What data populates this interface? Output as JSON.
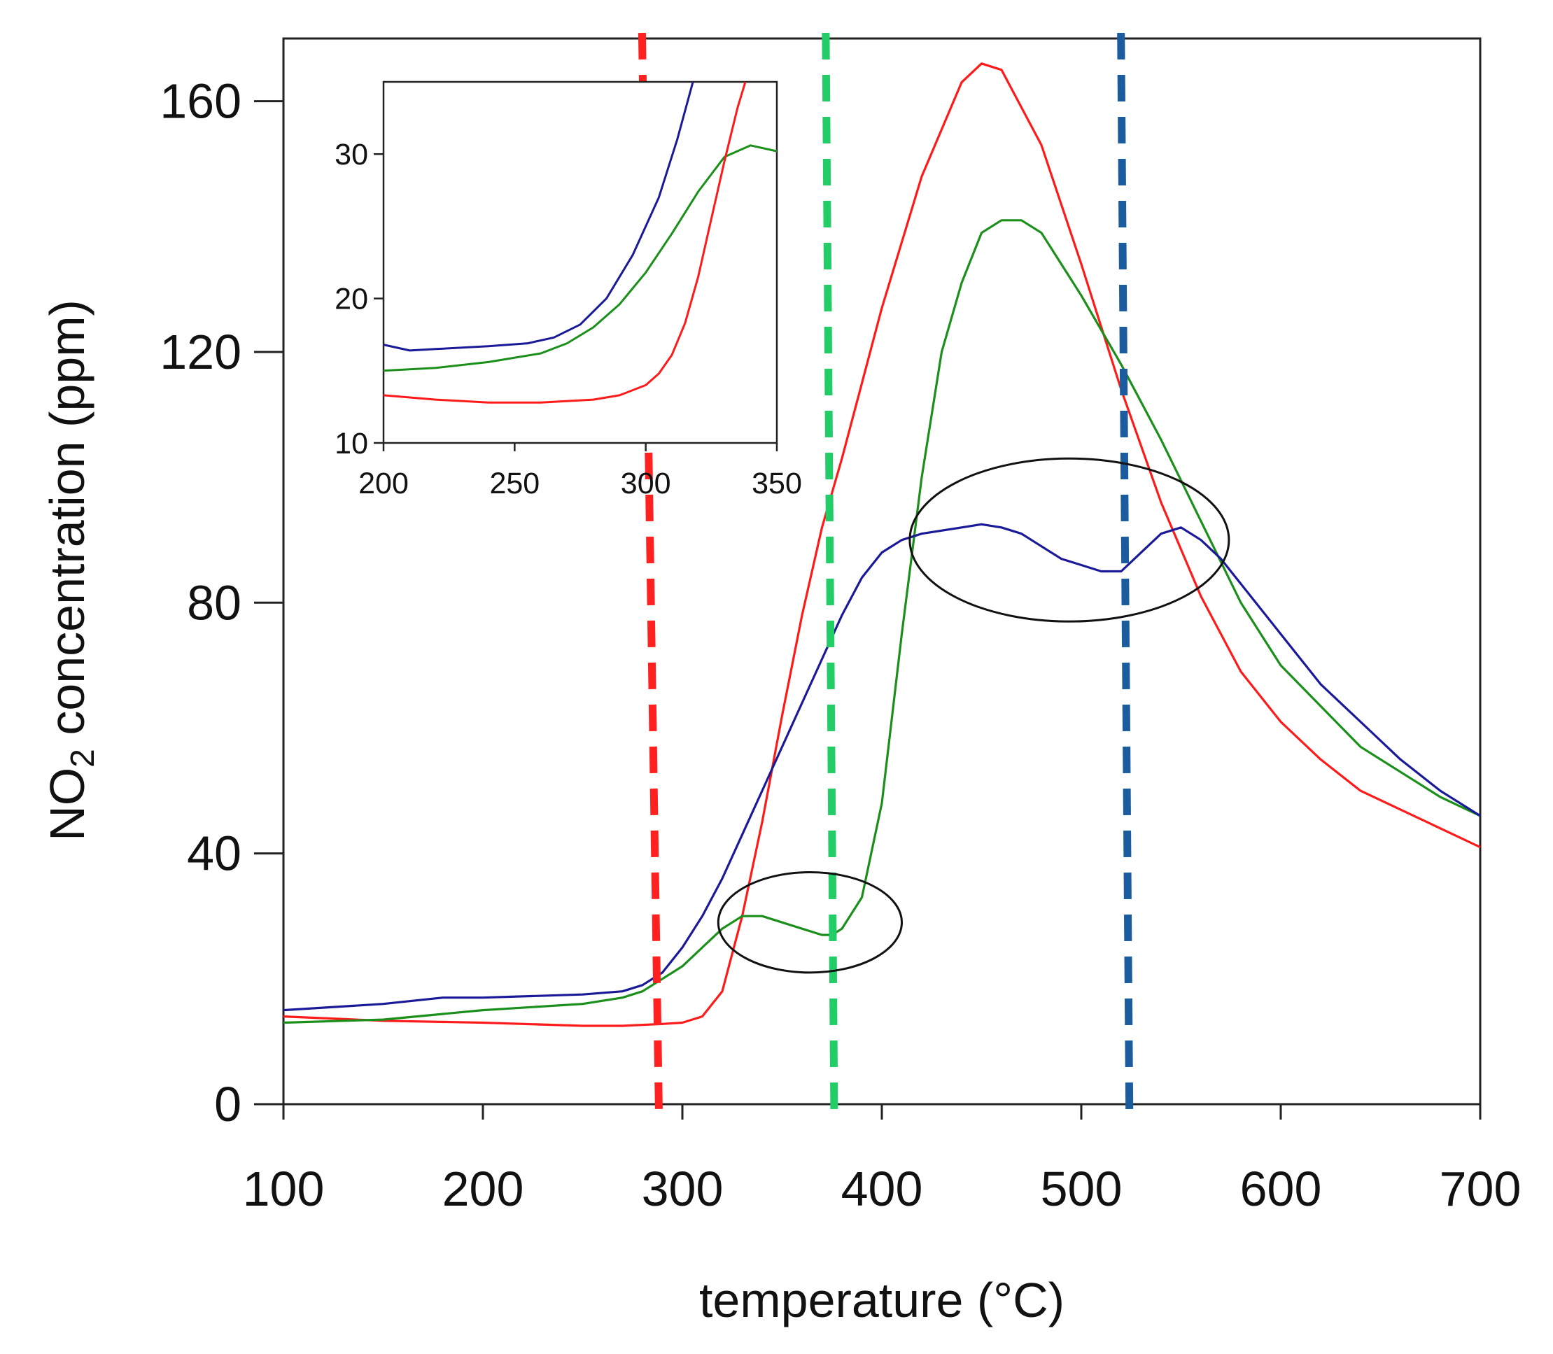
{
  "chart_data": {
    "type": "line",
    "xlabel": "temperature (°C)",
    "ylabel_main": "NO",
    "ylabel_subscript": "2",
    "ylabel_rest": " concentration (ppm)",
    "xlim": [
      100,
      700
    ],
    "ylim": [
      0,
      170
    ],
    "xticks": [
      "100",
      "200",
      "300",
      "400",
      "500",
      "600",
      "700"
    ],
    "yticks": [
      "0",
      "40",
      "80",
      "120",
      "160"
    ],
    "series": [
      {
        "name": "red",
        "color": "#ff1a1a",
        "x": [
          100,
          150,
          200,
          250,
          270,
          290,
          300,
          310,
          320,
          330,
          340,
          350,
          360,
          370,
          380,
          390,
          400,
          420,
          440,
          450,
          460,
          480,
          500,
          520,
          540,
          560,
          580,
          600,
          620,
          640,
          660,
          680,
          700
        ],
        "y": [
          14,
          13.3,
          13,
          12.5,
          12.5,
          12.8,
          13,
          14,
          18,
          30,
          45,
          62,
          78,
          92,
          103,
          115,
          127,
          148,
          163,
          166,
          165,
          153,
          134,
          114,
          96,
          81,
          69,
          61,
          55,
          50,
          47,
          44,
          41
        ]
      },
      {
        "name": "green",
        "color": "#1a8f1a",
        "x": [
          100,
          150,
          200,
          250,
          270,
          280,
          290,
          300,
          310,
          320,
          330,
          340,
          350,
          360,
          370,
          375,
          380,
          390,
          400,
          410,
          420,
          430,
          440,
          450,
          460,
          470,
          480,
          500,
          520,
          540,
          560,
          580,
          600,
          640,
          680,
          700
        ],
        "y": [
          13,
          13.5,
          15,
          16,
          17,
          18,
          20,
          22,
          25,
          28,
          30,
          30,
          29,
          28,
          27,
          27,
          28,
          33,
          48,
          75,
          100,
          120,
          131,
          139,
          141,
          141,
          139,
          129,
          118,
          106,
          93,
          80,
          70,
          57,
          49,
          46
        ]
      },
      {
        "name": "blue",
        "color": "#1a1a99",
        "x": [
          100,
          150,
          180,
          200,
          250,
          270,
          280,
          290,
          300,
          310,
          320,
          330,
          340,
          350,
          360,
          370,
          380,
          390,
          400,
          410,
          420,
          440,
          450,
          460,
          470,
          480,
          490,
          500,
          510,
          520,
          530,
          540,
          550,
          560,
          570,
          580,
          600,
          620,
          640,
          660,
          680,
          700
        ],
        "y": [
          15,
          16,
          17,
          17,
          17.5,
          18,
          19,
          21,
          25,
          30,
          36,
          43,
          50,
          57,
          64,
          71,
          78,
          84,
          88,
          90,
          91,
          92,
          92.5,
          92,
          91,
          89,
          87,
          86,
          85,
          85,
          88,
          91,
          92,
          90,
          87,
          83,
          75,
          67,
          61,
          55,
          50,
          46
        ]
      }
    ],
    "reference_lines": [
      {
        "x": 284,
        "color": "#ff2020"
      },
      {
        "x": 374,
        "color": "#22cc66"
      },
      {
        "x": 522,
        "color": "#1a5c9e"
      }
    ],
    "annotations": [
      {
        "type": "ellipse",
        "cx": 364,
        "cy": 29,
        "rx": 46,
        "ry": 8
      },
      {
        "type": "ellipse",
        "cx": 494,
        "cy": 90,
        "rx": 80,
        "ry": 13
      }
    ],
    "inset": {
      "type": "line",
      "xlim": [
        200,
        350
      ],
      "ylim": [
        10,
        35
      ],
      "xticks": [
        "200",
        "250",
        "300",
        "350"
      ],
      "yticks": [
        "10",
        "20",
        "30"
      ],
      "series": [
        {
          "name": "blue",
          "color": "#1a1a99",
          "x": [
            200,
            210,
            220,
            240,
            255,
            265,
            275,
            285,
            295,
            305,
            312,
            318
          ],
          "y": [
            16.8,
            16.4,
            16.5,
            16.7,
            16.9,
            17.3,
            18.2,
            20,
            23,
            27,
            31,
            35
          ]
        },
        {
          "name": "green",
          "color": "#1a8f1a",
          "x": [
            200,
            220,
            240,
            260,
            270,
            280,
            290,
            300,
            310,
            320,
            330,
            340,
            350
          ],
          "y": [
            15,
            15.2,
            15.6,
            16.2,
            16.9,
            18,
            19.6,
            21.8,
            24.5,
            27.4,
            29.8,
            30.6,
            30.2
          ]
        },
        {
          "name": "red",
          "color": "#ff1a1a",
          "x": [
            200,
            220,
            240,
            260,
            280,
            290,
            300,
            305,
            310,
            315,
            320,
            325,
            330,
            335,
            338
          ],
          "y": [
            13.3,
            13,
            12.8,
            12.8,
            13,
            13.3,
            14,
            14.8,
            16.1,
            18.3,
            21.5,
            25.5,
            29.5,
            33.2,
            35
          ]
        }
      ]
    }
  }
}
